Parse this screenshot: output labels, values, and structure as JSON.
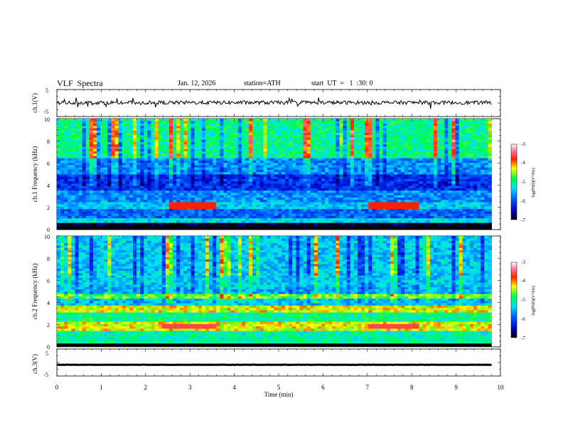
{
  "header": {
    "title": "VLF  Spectra",
    "date": "Jan. 12, 2026",
    "station": "station=ATH",
    "start": "start  UT  =   1  :30: 0"
  },
  "chart_data": [
    {
      "type": "line",
      "panel": "ch1-waveform",
      "ylabel": "ch.1(V)",
      "ylim": [
        -5,
        5
      ],
      "yticks": [
        "5",
        "-5"
      ],
      "xlim": [
        0,
        10
      ],
      "approx_level": 0.2,
      "color": "#000000"
    },
    {
      "type": "heatmap",
      "panel": "ch1-spectrogram",
      "ylabel": "ch.1 Frequency (kHz)",
      "ylim": [
        0,
        10
      ],
      "yticks": [
        "10",
        "8",
        "6",
        "4",
        "2",
        "0"
      ],
      "xlim": [
        0,
        9.8
      ],
      "colorbar": {
        "label": "log(PSD)(V²/Hz)",
        "range": [
          -7,
          -3
        ],
        "ticks": [
          "-3",
          "-4",
          "-5",
          "-6",
          "-7"
        ]
      },
      "bands": [
        {
          "from": 0.0,
          "to": 0.6,
          "level": -6.9
        },
        {
          "from": 0.6,
          "to": 1.0,
          "level": -5.3
        },
        {
          "from": 1.0,
          "to": 1.9,
          "level": -5.9
        },
        {
          "from": 1.9,
          "to": 2.4,
          "level": -5.4
        },
        {
          "from": 2.4,
          "to": 3.6,
          "level": -5.7
        },
        {
          "from": 3.6,
          "to": 5.0,
          "level": -6.2
        },
        {
          "from": 5.0,
          "to": 6.5,
          "level": -5.7
        },
        {
          "from": 6.5,
          "to": 10.0,
          "level": -5.0
        }
      ],
      "tone_lines": [
        {
          "freq": 2.2,
          "t0": 2.5,
          "t1": 3.6,
          "level": -3.8
        },
        {
          "freq": 2.2,
          "t0": 7.0,
          "t1": 8.2,
          "level": -3.8
        }
      ]
    },
    {
      "type": "heatmap",
      "panel": "ch2-spectrogram",
      "ylabel": "ch.2 Frequency (kHz)",
      "ylim": [
        0,
        10
      ],
      "yticks": [
        "10",
        "8",
        "6",
        "4",
        "2",
        "0"
      ],
      "xlim": [
        0,
        9.8
      ],
      "colorbar": {
        "label": "log(PSD)(V²/Hz)",
        "range": [
          -7,
          -3
        ],
        "ticks": [
          "-3",
          "-4",
          "-5",
          "-6",
          "-7"
        ]
      },
      "bands": [
        {
          "from": 0.0,
          "to": 0.6,
          "level": -5.0
        },
        {
          "from": 0.6,
          "to": 1.5,
          "level": -5.1
        },
        {
          "from": 1.5,
          "to": 2.3,
          "level": -4.3
        },
        {
          "from": 2.3,
          "to": 3.2,
          "level": -5.0
        },
        {
          "from": 3.2,
          "to": 3.7,
          "level": -4.3
        },
        {
          "from": 3.7,
          "to": 4.4,
          "level": -5.4
        },
        {
          "from": 4.4,
          "to": 4.8,
          "level": -4.6
        },
        {
          "from": 4.8,
          "to": 5.5,
          "level": -5.5
        },
        {
          "from": 5.5,
          "to": 10.0,
          "level": -5.4
        }
      ],
      "tone_lines": [
        {
          "freq": 1.9,
          "t0": 2.4,
          "t1": 3.6,
          "level": -3.6
        },
        {
          "freq": 1.9,
          "t0": 7.0,
          "t1": 8.2,
          "level": -3.6
        }
      ]
    },
    {
      "type": "line",
      "panel": "ch3-waveform",
      "ylabel": "ch.3(V)",
      "ylim": [
        -5,
        5
      ],
      "yticks": [
        "5",
        "-5"
      ],
      "xlim": [
        0,
        10
      ],
      "approx_level": -1.0,
      "color": "#000000"
    }
  ],
  "x_axis": {
    "label": "Time  (min)",
    "ticks": [
      "0",
      "1",
      "2",
      "3",
      "4",
      "5",
      "6",
      "7",
      "8",
      "9",
      "10"
    ]
  }
}
